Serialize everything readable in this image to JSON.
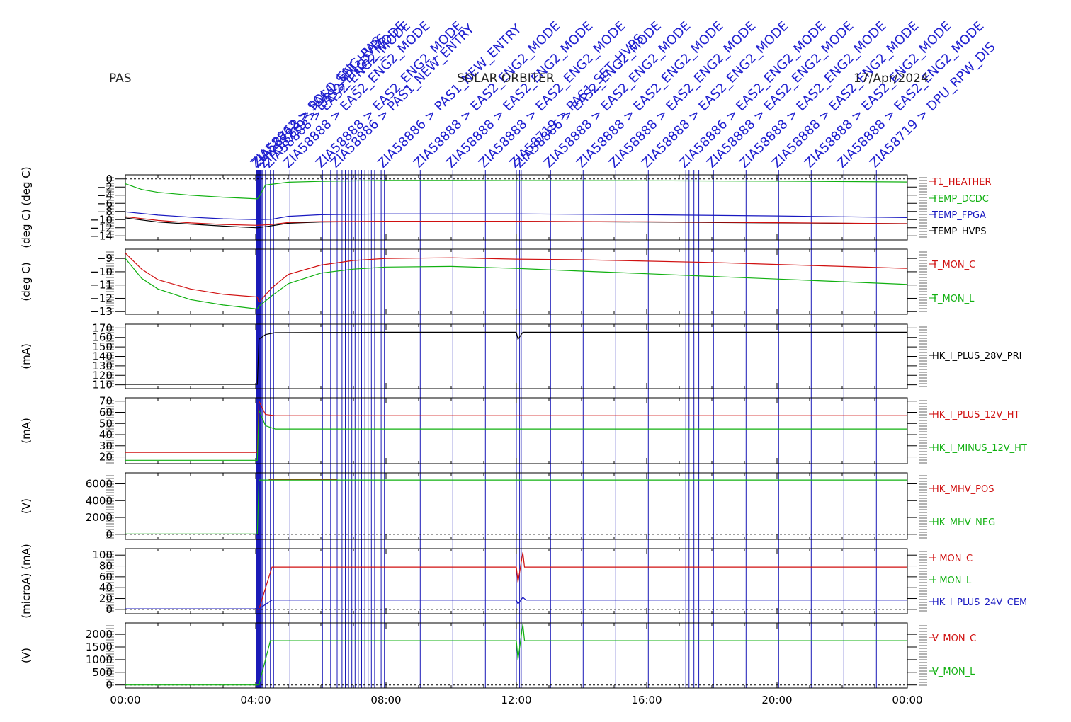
{
  "header": {
    "instrument": "PAS",
    "mission": "SOLAR ORBITER",
    "date": "17/Apr/2024"
  },
  "colors": {
    "red": "#d01010",
    "green": "#10b010",
    "blue": "#1818c0",
    "black": "#000000",
    "event": "#1a1ab8"
  },
  "chart_data": {
    "type": "line",
    "x_ticks": [
      "00:00",
      "04:00",
      "08:00",
      "12:00",
      "16:00",
      "20:00",
      "00:00"
    ],
    "xlim_hours": [
      0,
      24
    ],
    "events": [
      {
        "time_h": 4.05,
        "label": "ZIA58862 > SOLO_ENG_PAS"
      },
      {
        "time_h": 4.1,
        "label": "ZIA58718 > PAS1_SET_HVPS"
      },
      {
        "time_h": 4.3,
        "label": "ZIA58719 > EAS2_ENG2_MODE"
      },
      {
        "time_h": 4.45,
        "label": "ZIA58888 > EAS2_ENG2_MODE"
      },
      {
        "time_h": 5.05,
        "label": "ZIA58888 > EAS2_ENG2_MODE"
      },
      {
        "time_h": 6.05,
        "label": "ZIA58888 > EAS2_ENG2_MODE"
      },
      {
        "time_h": 6.5,
        "label": "ZIA58886 > PAS1_NEW_ENTRY"
      },
      {
        "time_h": 7.95,
        "label": "ZIA58886 > PAS1_NEW_ENTRY"
      },
      {
        "time_h": 9.05,
        "label": "ZIA58888 > EAS2_ENG2_MODE"
      },
      {
        "time_h": 10.05,
        "label": "ZIA58888 > EAS2_ENG2_MODE"
      },
      {
        "time_h": 11.05,
        "label": "ZIA58888 > EAS2_ENG2_MODE"
      },
      {
        "time_h": 12.0,
        "label": "ZIA58719 > PAS1_SET_HVPS"
      },
      {
        "time_h": 12.15,
        "label": "ZIA58886 > EAS2_ENG2_MODE"
      },
      {
        "time_h": 13.05,
        "label": "ZIA58888 > EAS2_ENG2_MODE"
      },
      {
        "time_h": 14.05,
        "label": "ZIA58888 > EAS2_ENG2_MODE"
      },
      {
        "time_h": 15.05,
        "label": "ZIA58888 > EAS2_ENG2_MODE"
      },
      {
        "time_h": 16.05,
        "label": "ZIA58888 > EAS2_ENG2_MODE"
      },
      {
        "time_h": 17.2,
        "label": "ZIA58886 > EAS2_ENG2_MODE"
      },
      {
        "time_h": 18.05,
        "label": "ZIA58888 > EAS2_ENG2_MODE"
      },
      {
        "time_h": 19.05,
        "label": "ZIA58888 > EAS2_ENG2_MODE"
      },
      {
        "time_h": 20.05,
        "label": "ZIA58888 > EAS2_ENG2_MODE"
      },
      {
        "time_h": 21.05,
        "label": "ZIA58888 > EAS2_ENG2_MODE"
      },
      {
        "time_h": 22.05,
        "label": "ZIA58888 > EAS2_ENG2_MODE"
      },
      {
        "time_h": 23.05,
        "label": "ZIA58719 > DPU_RPW_DIS"
      }
    ],
    "extra_event_times_h": [
      4.12,
      4.15,
      4.2,
      4.55,
      6.3,
      6.65,
      6.75,
      6.85,
      6.95,
      7.05,
      7.15,
      7.25,
      7.35,
      7.45,
      7.55,
      7.65,
      7.75,
      7.85,
      12.1,
      17.3,
      17.45,
      17.6
    ],
    "panels": [
      {
        "unit": "(deg C) (deg C)",
        "ylim": [
          -15,
          1
        ],
        "yticks": [
          0,
          -2,
          -4,
          -6,
          -8,
          -10,
          -12,
          -14
        ],
        "zero_line": true,
        "series": [
          {
            "name": "T1_HEATHER",
            "color": "red",
            "points": []
          },
          {
            "name": "TEMP_DCDC",
            "color": "green",
            "points": [
              [
                0,
                -1.2
              ],
              [
                0.5,
                -2.6
              ],
              [
                1,
                -3.3
              ],
              [
                2,
                -4.0
              ],
              [
                3,
                -4.5
              ],
              [
                4.05,
                -4.9
              ],
              [
                4.1,
                -4.5
              ],
              [
                4.3,
                -1.5
              ],
              [
                5,
                -0.8
              ],
              [
                6,
                -0.6
              ],
              [
                8,
                -0.35
              ],
              [
                10,
                -0.35
              ],
              [
                12,
                -0.4
              ],
              [
                16,
                -0.45
              ],
              [
                20,
                -0.55
              ],
              [
                24,
                -0.75
              ]
            ]
          },
          {
            "name": "TEMP_FPGA",
            "color": "blue",
            "points": [
              [
                0,
                -8.1
              ],
              [
                1,
                -8.9
              ],
              [
                2,
                -9.4
              ],
              [
                3,
                -9.8
              ],
              [
                4.05,
                -10.0
              ],
              [
                4.5,
                -9.9
              ],
              [
                5,
                -9.2
              ],
              [
                6,
                -8.8
              ],
              [
                8,
                -8.6
              ],
              [
                12,
                -8.6
              ],
              [
                16,
                -8.8
              ],
              [
                20,
                -9.1
              ],
              [
                24,
                -9.5
              ]
            ]
          },
          {
            "name": "TEMP_HVPS",
            "color": "black",
            "points": [
              [
                0,
                -9.6
              ],
              [
                1,
                -10.6
              ],
              [
                2,
                -11.1
              ],
              [
                3,
                -11.6
              ],
              [
                4.05,
                -12.0
              ],
              [
                4.5,
                -11.5
              ],
              [
                5,
                -10.9
              ],
              [
                6,
                -10.6
              ],
              [
                8,
                -10.45
              ],
              [
                12,
                -10.45
              ],
              [
                16,
                -10.6
              ],
              [
                20,
                -10.8
              ],
              [
                24,
                -11.0
              ]
            ]
          },
          {
            "name": "",
            "color": "red",
            "points": [
              [
                0,
                -9.3
              ],
              [
                1,
                -10.2
              ],
              [
                2,
                -10.8
              ],
              [
                3,
                -11.2
              ],
              [
                4.05,
                -11.4
              ],
              [
                4.5,
                -11.2
              ],
              [
                5,
                -10.7
              ],
              [
                6,
                -10.5
              ],
              [
                8,
                -10.4
              ],
              [
                12,
                -10.4
              ],
              [
                16,
                -10.55
              ],
              [
                20,
                -10.75
              ],
              [
                24,
                -11.0
              ]
            ]
          }
        ]
      },
      {
        "unit": "(deg C)",
        "ylim": [
          -13.2,
          -8.3
        ],
        "yticks": [
          -9,
          -10,
          -11,
          -12,
          -13
        ],
        "zero_line": false,
        "series": [
          {
            "name": "T_MON_C",
            "color": "red",
            "points": [
              [
                0,
                -8.6
              ],
              [
                0.5,
                -9.8
              ],
              [
                1,
                -10.6
              ],
              [
                2,
                -11.3
              ],
              [
                3,
                -11.7
              ],
              [
                4.05,
                -11.9
              ],
              [
                4.1,
                -12.3
              ],
              [
                4.5,
                -11.2
              ],
              [
                5,
                -10.2
              ],
              [
                6,
                -9.5
              ],
              [
                7,
                -9.15
              ],
              [
                8,
                -9.0
              ],
              [
                10,
                -8.95
              ],
              [
                12,
                -9.05
              ],
              [
                14,
                -9.1
              ],
              [
                16,
                -9.2
              ],
              [
                18,
                -9.3
              ],
              [
                20,
                -9.45
              ],
              [
                22,
                -9.6
              ],
              [
                24,
                -9.75
              ]
            ]
          },
          {
            "name": "T_MON_L",
            "color": "green",
            "points": [
              [
                0,
                -9.0
              ],
              [
                0.5,
                -10.5
              ],
              [
                1,
                -11.3
              ],
              [
                2,
                -12.1
              ],
              [
                3,
                -12.5
              ],
              [
                4.05,
                -12.8
              ],
              [
                4.1,
                -12.6
              ],
              [
                4.5,
                -11.8
              ],
              [
                5,
                -10.9
              ],
              [
                6,
                -10.1
              ],
              [
                7,
                -9.8
              ],
              [
                8,
                -9.65
              ],
              [
                10,
                -9.6
              ],
              [
                12,
                -9.75
              ],
              [
                14,
                -9.95
              ],
              [
                16,
                -10.15
              ],
              [
                18,
                -10.35
              ],
              [
                20,
                -10.55
              ],
              [
                22,
                -10.75
              ],
              [
                24,
                -10.95
              ]
            ]
          }
        ]
      },
      {
        "unit": "(mA)",
        "ylim": [
          106,
          174
        ],
        "yticks": [
          170,
          160,
          150,
          140,
          130,
          120,
          110
        ],
        "zero_line": false,
        "series": [
          {
            "name": "HK_I_PLUS_28V_PRI",
            "color": "black",
            "points": [
              [
                0,
                110.5
              ],
              [
                4.05,
                110.5
              ],
              [
                4.1,
                158
              ],
              [
                4.3,
                163
              ],
              [
                4.6,
                165
              ],
              [
                8,
                165.5
              ],
              [
                12,
                165.5
              ],
              [
                12.05,
                158
              ],
              [
                12.2,
                165.5
              ],
              [
                16,
                165.5
              ],
              [
                20,
                165.5
              ],
              [
                24,
                165.5
              ]
            ]
          }
        ]
      },
      {
        "unit": "(mA)",
        "ylim": [
          14,
          73
        ],
        "yticks": [
          70,
          60,
          50,
          40,
          30,
          20
        ],
        "zero_line": false,
        "series": [
          {
            "name": "HK_I_PLUS_12V_HT",
            "color": "red",
            "points": [
              [
                0,
                24
              ],
              [
                4.05,
                24
              ],
              [
                4.1,
                70
              ],
              [
                4.3,
                58
              ],
              [
                4.6,
                57
              ],
              [
                12,
                57
              ],
              [
                24,
                57
              ]
            ]
          },
          {
            "name": "HK_I_MINUS_12V_HT",
            "color": "green",
            "points": [
              [
                0,
                17
              ],
              [
                4.05,
                17
              ],
              [
                4.1,
                62
              ],
              [
                4.3,
                48
              ],
              [
                4.6,
                45
              ],
              [
                12,
                45
              ],
              [
                24,
                45
              ]
            ]
          }
        ]
      },
      {
        "unit": "(V)",
        "ylim": [
          -600,
          7300
        ],
        "yticks": [
          6000,
          4000,
          2000,
          0
        ],
        "zero_line": true,
        "series": [
          {
            "name": "HK_MHV_POS",
            "color": "red",
            "points": [
              [
                4.4,
                6500
              ],
              [
                6.5,
                6500
              ]
            ]
          },
          {
            "name": "HK_MHV_NEG",
            "color": "green",
            "points": [
              [
                0,
                50
              ],
              [
                4.05,
                50
              ],
              [
                4.1,
                6450
              ],
              [
                12,
                6450
              ],
              [
                24,
                6450
              ]
            ]
          }
        ]
      },
      {
        "unit": "(microA) (mA)",
        "ylim": [
          -8,
          112
        ],
        "yticks": [
          100,
          80,
          60,
          40,
          20,
          0
        ],
        "zero_line": true,
        "series": [
          {
            "name": "I_MON_C",
            "color": "red",
            "points": [
              [
                4.05,
                0
              ],
              [
                4.1,
                0
              ],
              [
                4.5,
                78
              ],
              [
                6,
                78
              ],
              [
                8,
                78
              ],
              [
                12,
                78
              ],
              [
                12.05,
                50
              ],
              [
                12.2,
                105
              ],
              [
                12.25,
                78
              ],
              [
                16,
                78
              ],
              [
                24,
                78
              ]
            ]
          },
          {
            "name": "I_MON_L",
            "color": "green",
            "points": []
          },
          {
            "name": "HK_I_PLUS_24V_CEM",
            "color": "blue",
            "points": [
              [
                0,
                1
              ],
              [
                4.05,
                1
              ],
              [
                4.1,
                1
              ],
              [
                4.5,
                17
              ],
              [
                12,
                17
              ],
              [
                12.05,
                10
              ],
              [
                12.2,
                22
              ],
              [
                12.3,
                17
              ],
              [
                24,
                17
              ]
            ]
          }
        ]
      },
      {
        "unit": "(V)",
        "ylim": [
          -120,
          2450
        ],
        "yticks": [
          2000,
          1500,
          1000,
          500,
          0
        ],
        "zero_line": true,
        "series": [
          {
            "name": "V_MON_C",
            "color": "red",
            "points": []
          },
          {
            "name": "V_MON_L",
            "color": "green",
            "points": [
              [
                0,
                0
              ],
              [
                4.05,
                0
              ],
              [
                4.1,
                0
              ],
              [
                4.45,
                1750
              ],
              [
                12,
                1750
              ],
              [
                12.05,
                1000
              ],
              [
                12.2,
                2400
              ],
              [
                12.25,
                1750
              ],
              [
                24,
                1750
              ]
            ]
          }
        ]
      }
    ]
  }
}
